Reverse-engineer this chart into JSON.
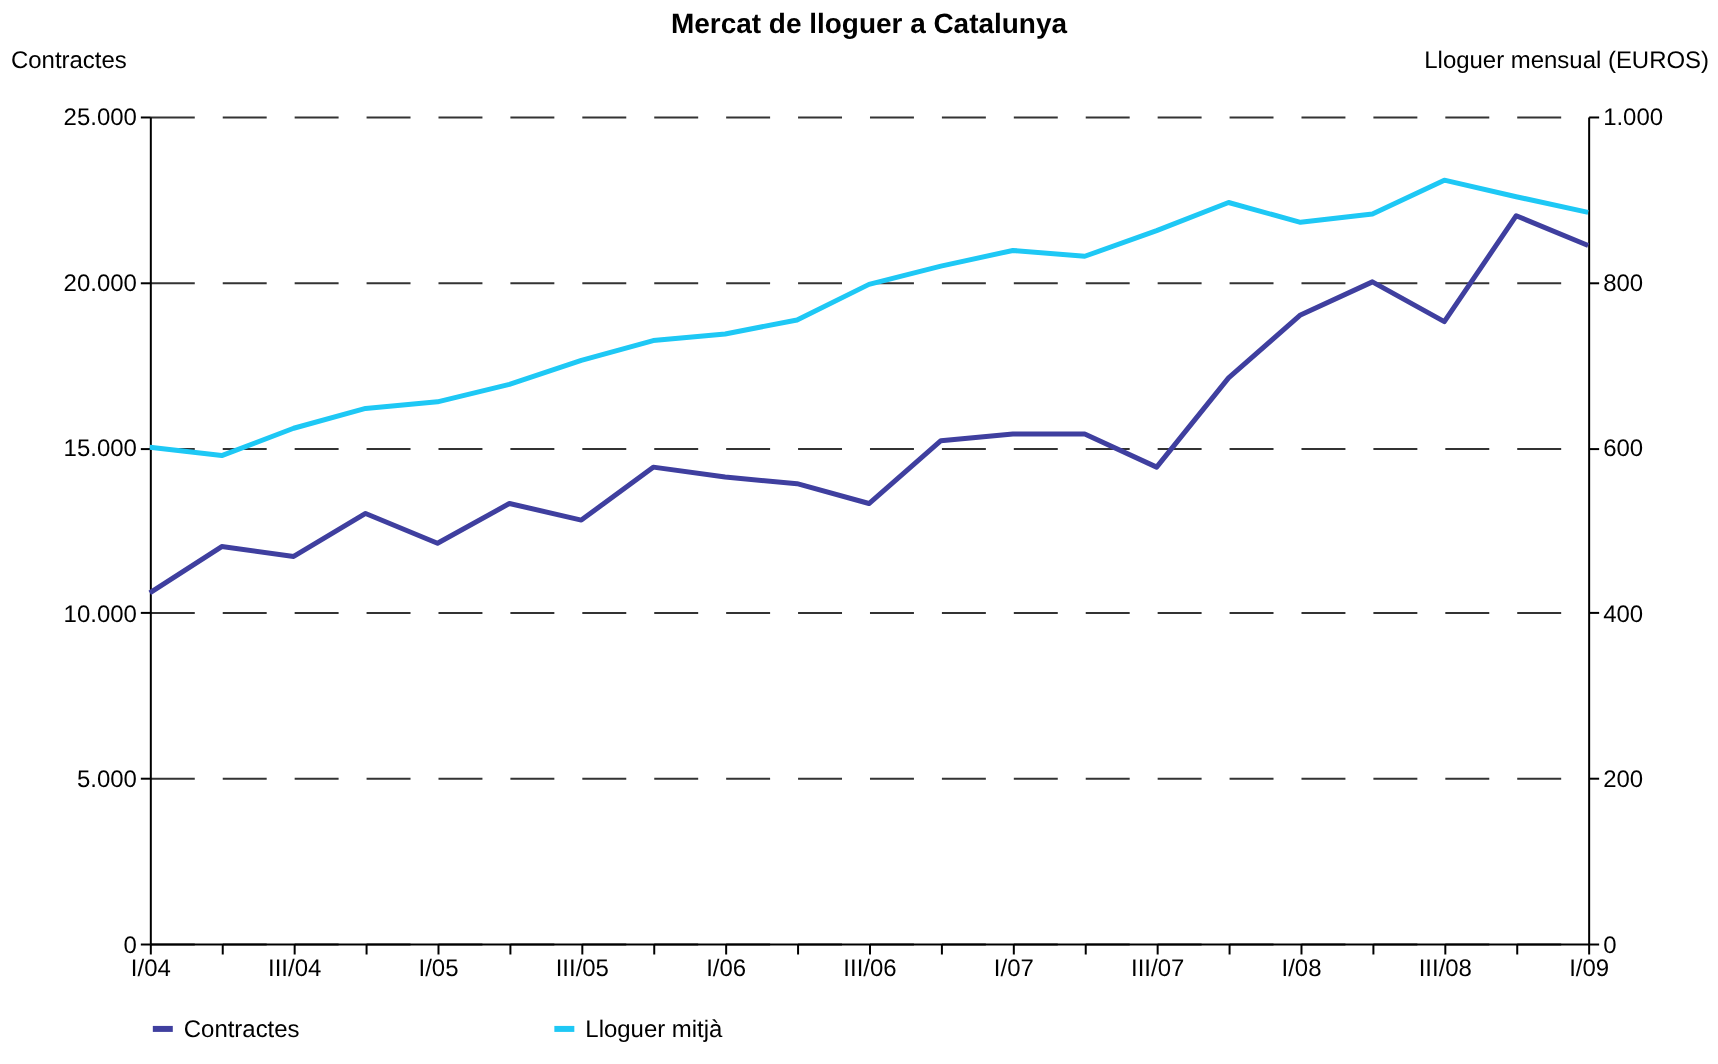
{
  "chart_data": {
    "type": "line",
    "title": "Mercat de lloguer a Catalunya",
    "ylabel": "Contractes",
    "y2label": "Lloguer mensual (EUROS)",
    "categories": [
      "I/04",
      null,
      "III/04",
      null,
      "I/05",
      null,
      "III/05",
      null,
      "I/06",
      null,
      "III/06",
      null,
      "I/07",
      null,
      "III/07",
      null,
      "I/08",
      null,
      "III/08",
      null,
      "I/09"
    ],
    "series": [
      {
        "name": "Contractes",
        "color": "#3f3f9f",
        "values": [
          10600,
          12000,
          11700,
          13000,
          12100,
          13300,
          12800,
          14400,
          14100,
          13900,
          13300,
          15200,
          15400,
          15400,
          14400,
          17100,
          19000,
          20000,
          18800,
          22000,
          21100
        ]
      },
      {
        "name": "Lloguer mitjà",
        "color": "#1ec8f5",
        "axis": "y2",
        "values": [
          600,
          590,
          623,
          647,
          655,
          676,
          705,
          729,
          737,
          754,
          797,
          819,
          838,
          831,
          862,
          896,
          872,
          882,
          923,
          903,
          884
        ]
      }
    ],
    "ylim": [
      0,
      25000
    ],
    "yticks": [
      0,
      {
        "value": 5000,
        "label": "5.000"
      },
      {
        "value": 10000,
        "label": "10.000"
      },
      {
        "value": 15000,
        "label": "15.000"
      },
      {
        "value": 20000,
        "label": "20.000"
      },
      {
        "value": 25000,
        "label": "25.000"
      }
    ],
    "y2lim": [
      0,
      1000
    ],
    "y2ticks": [
      0,
      200,
      400,
      600,
      800,
      {
        "value": 1000,
        "label": "1.000"
      }
    ],
    "grid": "y",
    "legend": "bottom",
    "line_style": "solid",
    "marker": "none"
  }
}
